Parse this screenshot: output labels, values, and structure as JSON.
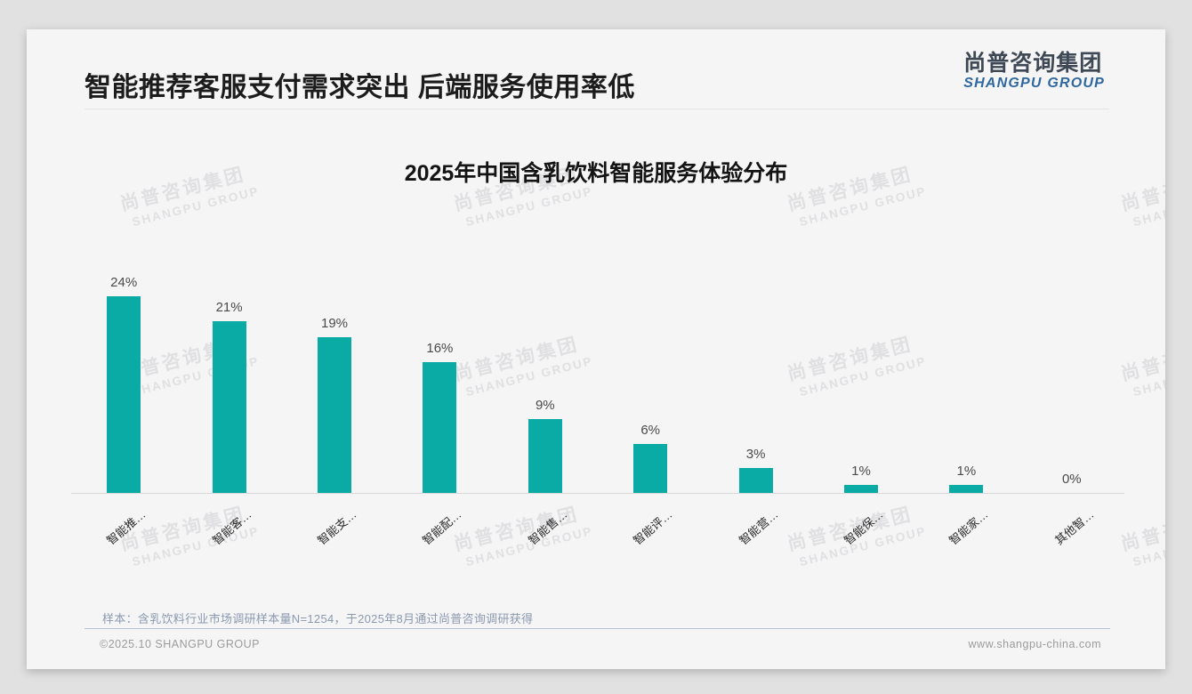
{
  "page": {
    "title": "智能推荐客服支付需求突出 后端服务使用率低",
    "logo": {
      "cn": "尚普咨询集团",
      "en": "SHANGPU GROUP"
    },
    "watermark": {
      "cn": "尚普咨询集团",
      "en": "SHANGPU GROUP"
    },
    "note": "样本：含乳饮料行业市场调研样本量N=1254，于2025年8月通过尚普咨询调研获得",
    "footer_left": "©2025.10 SHANGPU GROUP",
    "footer_right": "www.shangpu-china.com"
  },
  "chart_data": {
    "type": "bar",
    "title": "2025年中国含乳饮料智能服务体验分布",
    "categories": [
      "智能推…",
      "智能客…",
      "智能支…",
      "智能配…",
      "智能售…",
      "智能评…",
      "智能营…",
      "智能保…",
      "智能家…",
      "其他智…"
    ],
    "values": [
      24,
      21,
      19,
      16,
      9,
      6,
      3,
      1,
      1,
      0
    ],
    "value_labels": [
      "24%",
      "21%",
      "19%",
      "16%",
      "9%",
      "6%",
      "3%",
      "1%",
      "1%",
      "0%"
    ],
    "unit": "%",
    "xlabel": "",
    "ylabel": "",
    "ylim": [
      0,
      26
    ],
    "grid": false,
    "legend": "none",
    "bar_color": "#0aaba4"
  },
  "colors": {
    "accent_teal": "#0aaba4",
    "logo_blue": "#2f679f",
    "note_gray_blue": "#8b99af",
    "card_bg": "#f5f5f6",
    "page_bg": "#e1e1e1"
  }
}
